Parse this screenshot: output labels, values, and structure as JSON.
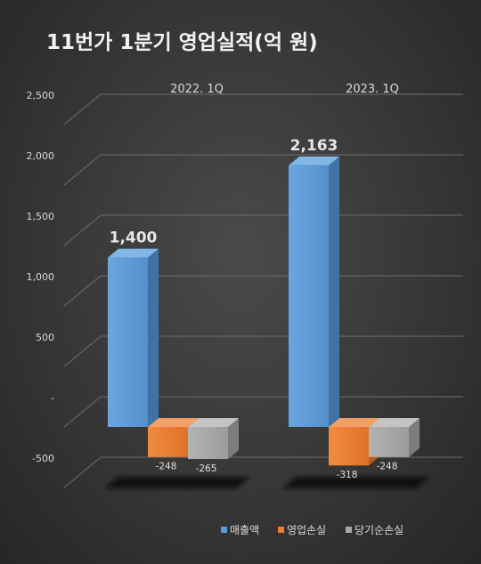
{
  "chart_data": {
    "type": "bar",
    "title": "11번가 1분기 영업실적(억 원)",
    "categories": [
      "2022. 1Q",
      "2023. 1Q"
    ],
    "series": [
      {
        "name": "매출액",
        "values": [
          1400,
          2163
        ],
        "labels": [
          "1,400",
          "2,163"
        ],
        "color": "#5b9bd5"
      },
      {
        "name": "영업손실",
        "values": [
          -248,
          -318
        ],
        "labels": [
          "-248",
          "-318"
        ],
        "color": "#ed7d31"
      },
      {
        "name": "당기순손실",
        "values": [
          -265,
          -248
        ],
        "labels": [
          "-265",
          "-248"
        ],
        "color": "#a5a5a5"
      }
    ],
    "yticks": [
      {
        "value": 2500,
        "label": "2,500"
      },
      {
        "value": 2000,
        "label": "2,000"
      },
      {
        "value": 1500,
        "label": "1,500"
      },
      {
        "value": 1000,
        "label": "1,000"
      },
      {
        "value": 500,
        "label": "500"
      },
      {
        "value": 0,
        "label": "-"
      },
      {
        "value": -500,
        "label": "-500"
      }
    ],
    "ylim": [
      -500,
      2500
    ],
    "grid": true,
    "legend_position": "bottom-right",
    "style": "3d-column"
  }
}
